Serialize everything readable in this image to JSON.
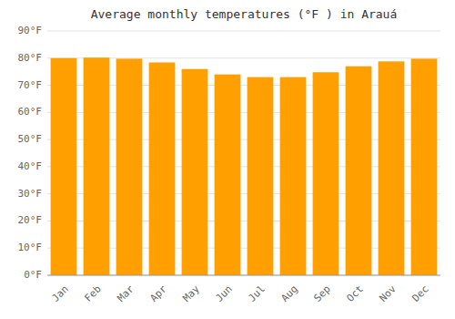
{
  "chart_data": {
    "type": "bar",
    "title": "Average monthly temperatures (°F ) in Arauá",
    "categories": [
      "Jan",
      "Feb",
      "Mar",
      "Apr",
      "May",
      "Jun",
      "Jul",
      "Aug",
      "Sep",
      "Oct",
      "Nov",
      "Dec"
    ],
    "values": [
      80.0,
      80.2,
      79.8,
      78.4,
      76.0,
      74.0,
      73.0,
      73.0,
      74.8,
      77.0,
      78.8,
      79.8
    ],
    "color": "#FFA000",
    "ylim": [
      0,
      90
    ],
    "yticks": [
      {
        "value": 0,
        "label": "0°F"
      },
      {
        "value": 10,
        "label": "10°F"
      },
      {
        "value": 20,
        "label": "20°F"
      },
      {
        "value": 30,
        "label": "30°F"
      },
      {
        "value": 40,
        "label": "40°F"
      },
      {
        "value": 50,
        "label": "50°F"
      },
      {
        "value": 60,
        "label": "60°F"
      },
      {
        "value": 70,
        "label": "70°F"
      },
      {
        "value": 80,
        "label": "80°F"
      },
      {
        "value": 90,
        "label": "90°F"
      }
    ],
    "grid": true
  }
}
